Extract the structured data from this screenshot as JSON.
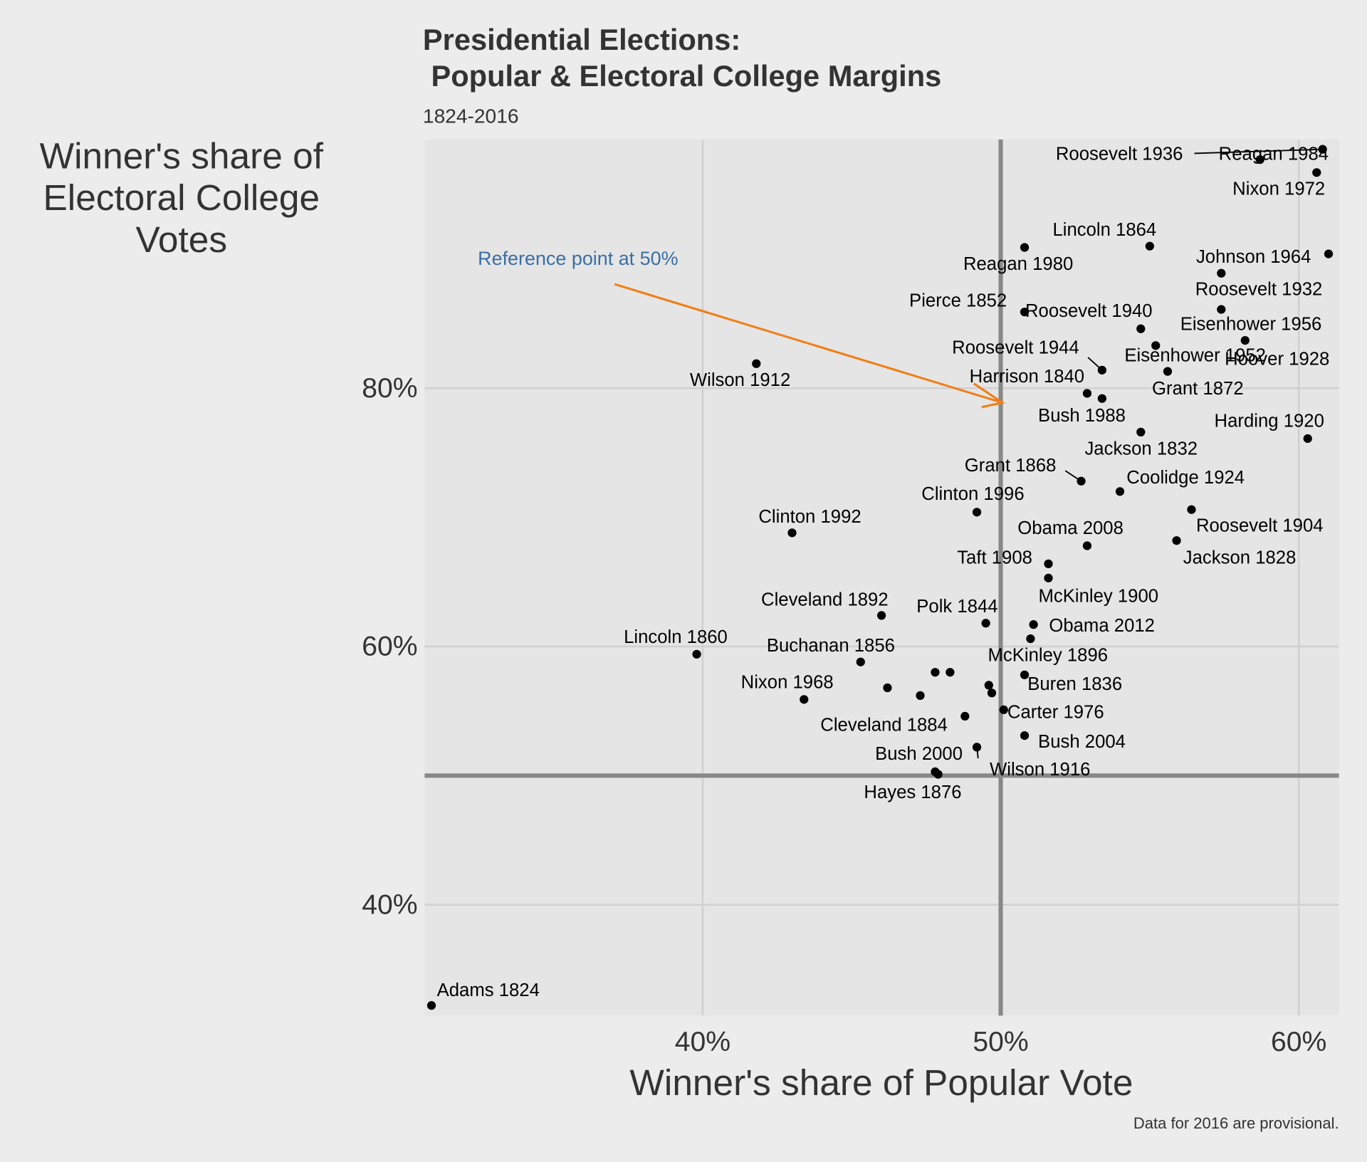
{
  "chart_data": {
    "type": "scatter",
    "title": [
      "Presidential Elections:",
      " Popular & Electoral College Margins"
    ],
    "subtitle": "1824-2016",
    "x_label": "Winner's share of Popular Vote",
    "y_label": [
      "Winner's share of",
      "Electoral College",
      "Votes"
    ],
    "caption": "Data for 2016 are provisional.",
    "annotation": "Reference point at 50%",
    "color": "#000000",
    "annotation_color": "#3b6ea5",
    "arrow_color": "#f07f16",
    "xlim": [
      30.67,
      61.35
    ],
    "ylim": [
      31.42,
      99.26
    ],
    "xticks": [
      {
        "value": 40,
        "label": "40%"
      },
      {
        "value": 50,
        "label": "50%"
      },
      {
        "value": 60,
        "label": "60%"
      }
    ],
    "yticks": [
      {
        "value": 40,
        "label": "40%"
      },
      {
        "value": 60,
        "label": "60%"
      },
      {
        "value": 80,
        "label": "80%"
      }
    ],
    "grid": true,
    "ref_x": 50,
    "ref_y": 50,
    "x": [
      30.9,
      39.8,
      41.8,
      43.0,
      43.4,
      46.0,
      45.3,
      46.2,
      47.3,
      47.8,
      48.3,
      48.8,
      49.5,
      49.2,
      49.6,
      49.7,
      49.2,
      47.9,
      47.8,
      50.1,
      50.8,
      50.8,
      51.0,
      51.1,
      51.6,
      51.6,
      52.9,
      52.7,
      54.0,
      54.7,
      52.9,
      53.4,
      53.4,
      55.6,
      55.2,
      54.7,
      50.8,
      50.8,
      55.0,
      57.4,
      61.0,
      57.4,
      58.2,
      56.4,
      55.9,
      60.3,
      60.6,
      58.7,
      60.8
    ],
    "y": [
      32.2,
      59.4,
      81.9,
      68.8,
      55.9,
      62.4,
      58.8,
      56.8,
      56.2,
      58.0,
      58.0,
      54.6,
      61.8,
      70.4,
      57.0,
      56.4,
      52.2,
      50.1,
      50.3,
      55.1,
      53.1,
      57.8,
      60.6,
      61.7,
      65.3,
      66.4,
      67.8,
      72.8,
      72.0,
      76.6,
      79.6,
      79.2,
      81.4,
      81.3,
      83.3,
      84.6,
      85.9,
      90.9,
      91.0,
      88.9,
      90.4,
      86.1,
      83.7,
      70.6,
      68.2,
      76.1,
      96.7,
      97.7,
      98.5
    ],
    "labels": [
      "Adams 1824",
      "Lincoln 1860",
      "Wilson 1912",
      "Clinton 1992",
      "Nixon 1968",
      "Cleveland 1892",
      "Buchanan 1856",
      null,
      null,
      null,
      null,
      "Cleveland 1884",
      "Polk 1844",
      "Clinton 1996",
      null,
      null,
      "Wilson 1916",
      "Hayes 1876",
      "Bush 2000",
      "Carter 1976",
      "Bush 2004",
      "Buren 1836",
      "McKinley 1896",
      "Obama 2012",
      "McKinley 1900",
      "Taft 1908",
      "Obama 2008",
      "Grant 1868",
      "Coolidge 1924",
      "Jackson 1832",
      "Harrison 1840",
      "Bush 1988",
      "Roosevelt 1944",
      "Grant 1872",
      "Eisenhower 1952",
      "Roosevelt 1940",
      "Pierce 1852",
      "Reagan 1980",
      "Lincoln 1864",
      "Roosevelt 1932",
      "Johnson 1964",
      "Eisenhower 1956",
      "Hoover 1928",
      "Roosevelt 1904",
      "Jackson 1828",
      "Harding 1920",
      "Nixon 1972",
      "Reagan 1984",
      "Roosevelt 1936"
    ]
  }
}
